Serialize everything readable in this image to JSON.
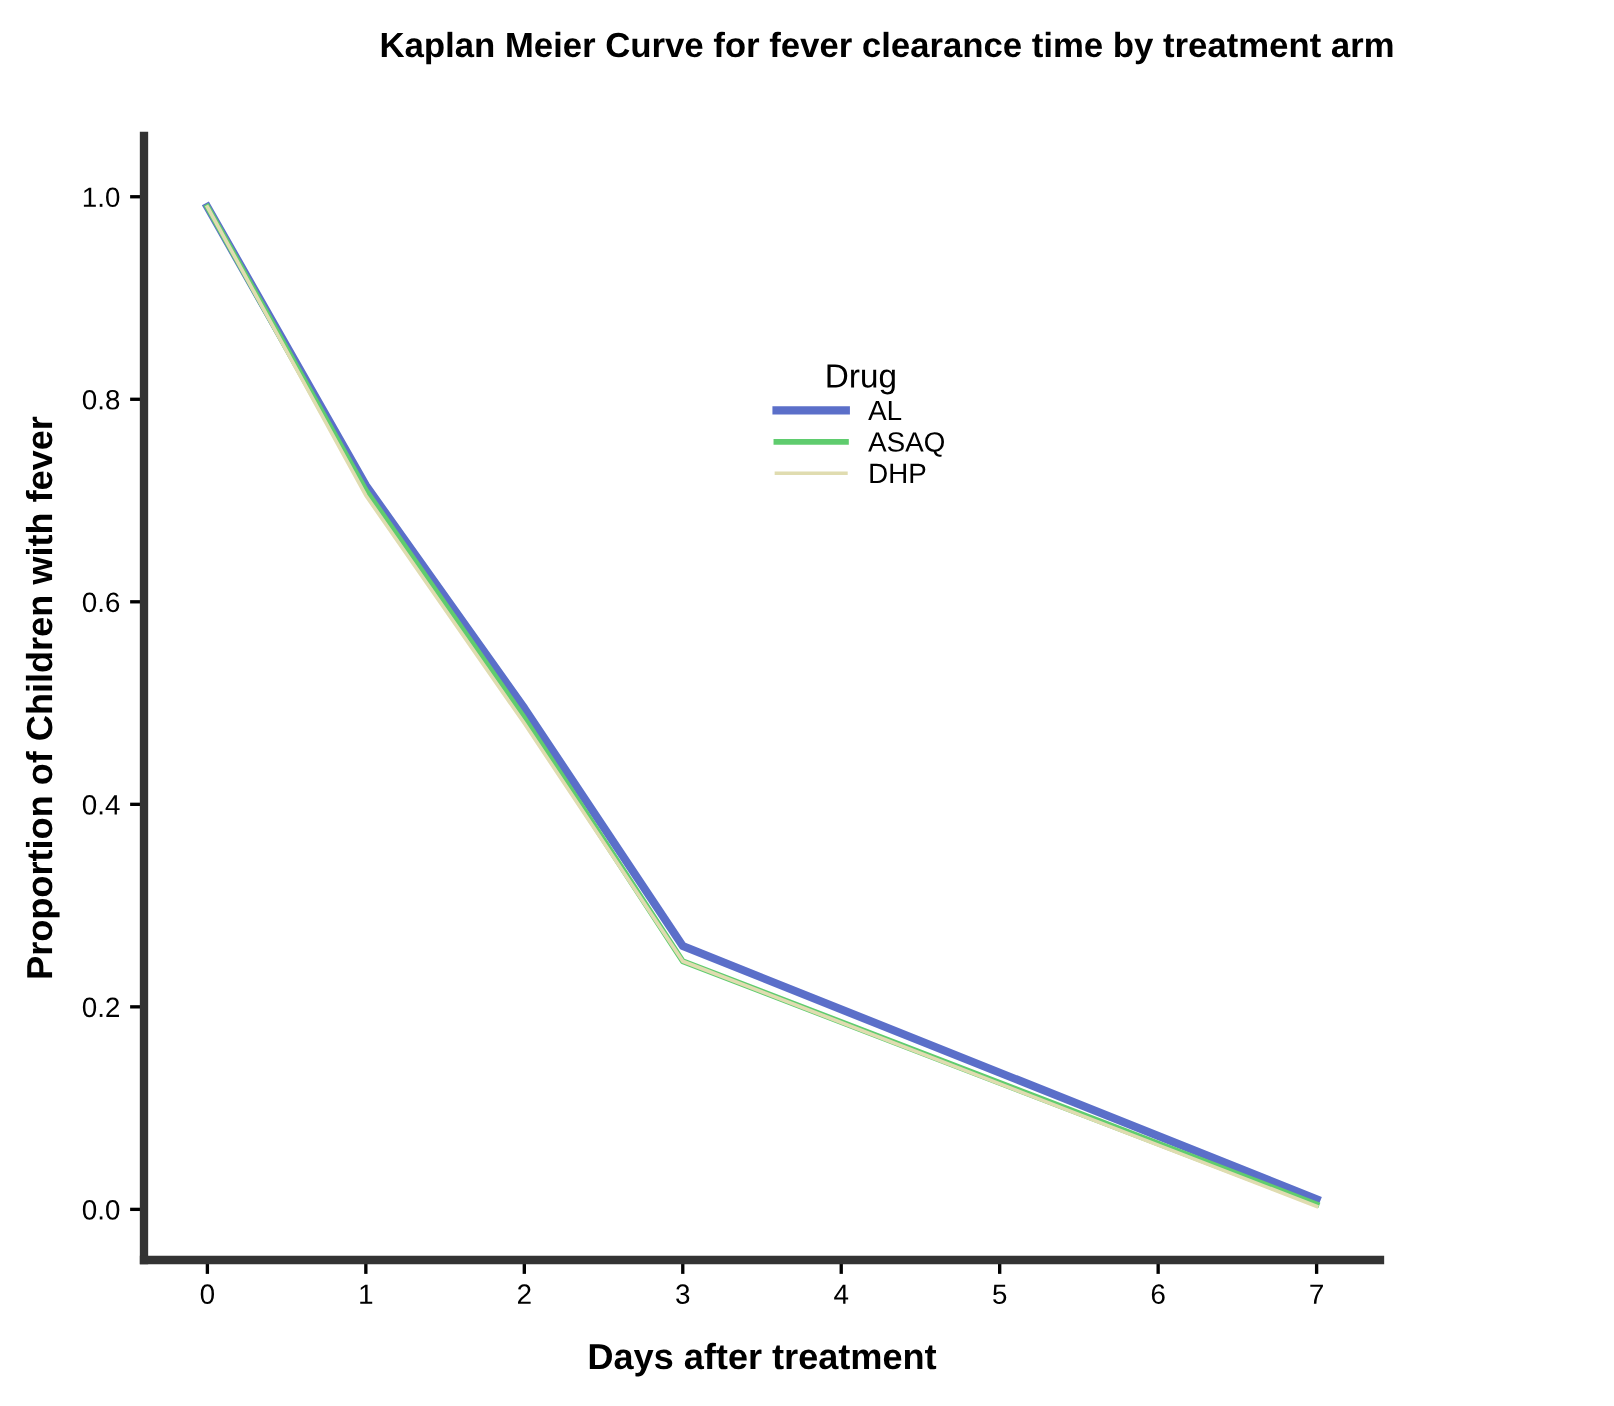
{
  "chart_data": {
    "type": "line",
    "title": "Kaplan Meier Curve for fever clearance time by treatment arm",
    "xlabel": "Days after treatment",
    "ylabel": "Proportion of Children with fever",
    "legend_title": "Drug",
    "x": [
      0,
      1,
      2,
      3,
      7
    ],
    "series": [
      {
        "name": "AL",
        "color": "#5b6fc9",
        "values": [
          0.99,
          0.715,
          0.495,
          0.26,
          0.01
        ]
      },
      {
        "name": "ASAQ",
        "color": "#5fcc6e",
        "values": [
          0.99,
          0.71,
          0.485,
          0.245,
          0.005
        ]
      },
      {
        "name": "DHP",
        "color": "#e0dcb0",
        "values": [
          0.99,
          0.705,
          0.48,
          0.245,
          0.003
        ]
      }
    ],
    "xlim": [
      -0.4,
      7.4
    ],
    "ylim": [
      -0.05,
      1.06
    ],
    "xticks": [
      0,
      1,
      2,
      3,
      4,
      5,
      6,
      7
    ],
    "yticks": [
      {
        "value": 0,
        "label": "0.0"
      },
      {
        "value": 0.2,
        "label": "0.2"
      },
      {
        "value": 0.4,
        "label": "0.4"
      },
      {
        "value": 0.6,
        "label": "0.6"
      },
      {
        "value": 0.8,
        "label": "0.8"
      },
      {
        "value": 1,
        "label": "1.0"
      }
    ],
    "legend": "top center",
    "grid": false,
    "marker": "none",
    "line_style": "solid"
  }
}
